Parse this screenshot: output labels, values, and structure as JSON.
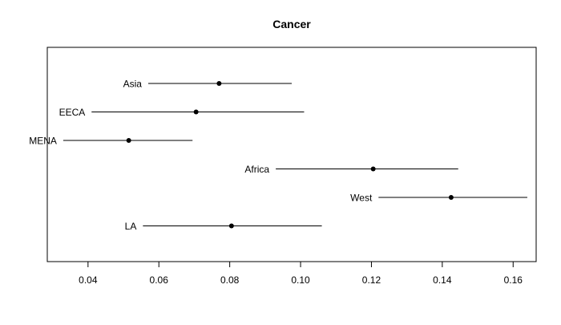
{
  "chart_data": {
    "type": "scatter",
    "title": "Cancer",
    "xlabel": "",
    "ylabel": "",
    "xlim": [
      0.0285,
      0.1665
    ],
    "grid": false,
    "x_ticks": [
      0.04,
      0.06,
      0.08,
      0.1,
      0.12,
      0.14,
      0.16
    ],
    "x_tick_labels": [
      "0.04",
      "0.06",
      "0.08",
      "0.10",
      "0.12",
      "0.14",
      "0.16"
    ],
    "series": [
      {
        "points": [
          {
            "label": "Asia",
            "x": 0.077,
            "lower": 0.057,
            "upper": 0.0975
          },
          {
            "label": "EECA",
            "x": 0.0705,
            "lower": 0.041,
            "upper": 0.101
          },
          {
            "label": "MENA",
            "x": 0.0515,
            "lower": 0.033,
            "upper": 0.0695
          },
          {
            "label": "Africa",
            "x": 0.1205,
            "lower": 0.093,
            "upper": 0.1445
          },
          {
            "label": "West",
            "x": 0.1425,
            "lower": 0.122,
            "upper": 0.164
          },
          {
            "label": "LA",
            "x": 0.0805,
            "lower": 0.0555,
            "upper": 0.106
          }
        ]
      }
    ]
  }
}
